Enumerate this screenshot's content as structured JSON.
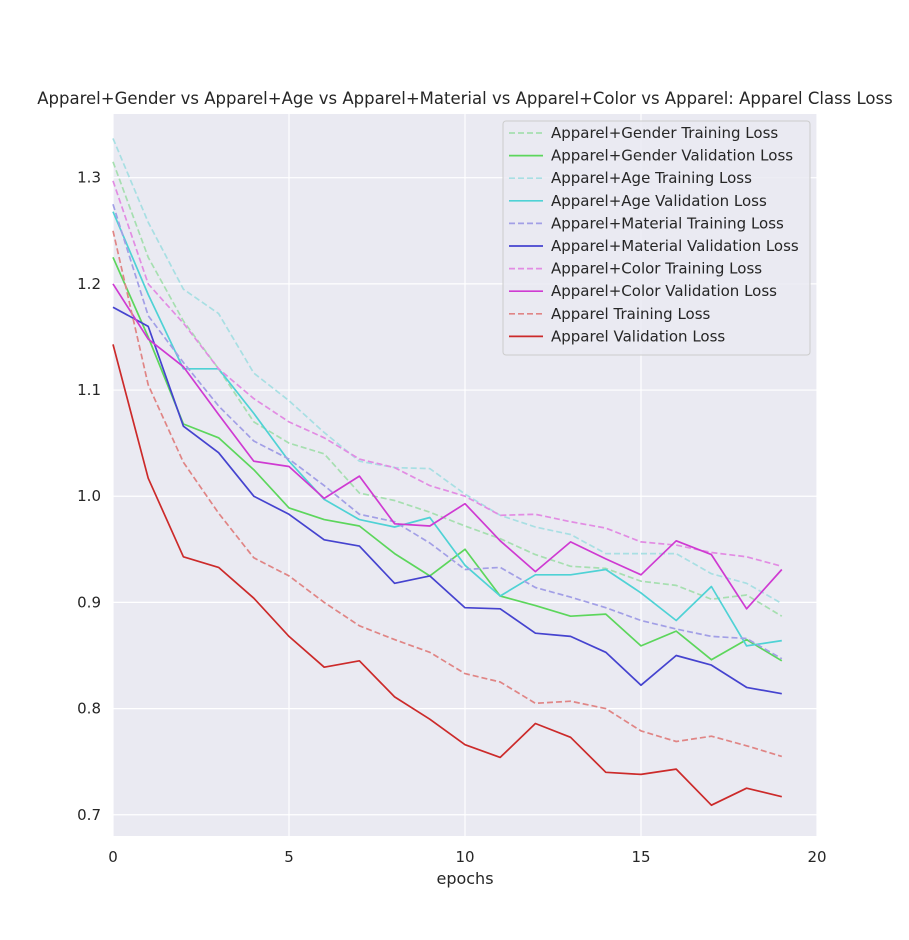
{
  "chart_data": {
    "type": "line",
    "title": "Apparel+Gender vs Apparel+Age vs Apparel+Material vs Apparel+Color vs Apparel: Apparel Class Loss",
    "xlabel": "epochs",
    "ylabel": "",
    "xlim": [
      0,
      20
    ],
    "ylim": [
      0.68,
      1.36
    ],
    "xticks": [
      0,
      5,
      10,
      15,
      20
    ],
    "yticks": [
      0.7,
      0.8,
      0.9,
      1.0,
      1.1,
      1.2,
      1.3
    ],
    "x_tick_labels": [
      "0",
      "5",
      "10",
      "15",
      "20"
    ],
    "y_tick_labels": [
      "0.7",
      "0.8",
      "0.9",
      "1.0",
      "1.1",
      "1.2",
      "1.3"
    ],
    "grid": true,
    "legend_position": "top-right",
    "x": [
      0,
      1,
      2,
      3,
      4,
      5,
      6,
      7,
      8,
      9,
      10,
      11,
      12,
      13,
      14,
      15,
      16,
      17,
      18,
      19
    ],
    "series": [
      {
        "name": "Apparel+Gender Training Loss",
        "color": "#a6dfb0",
        "style": "dashed",
        "values": [
          1.315,
          1.225,
          1.165,
          1.12,
          1.07,
          1.05,
          1.04,
          1.003,
          0.996,
          0.985,
          0.972,
          0.96,
          0.945,
          0.934,
          0.932,
          0.92,
          0.916,
          0.903,
          0.907,
          0.887
        ]
      },
      {
        "name": "Apparel+Gender Validation Loss",
        "color": "#5cd65c",
        "style": "solid",
        "values": [
          1.225,
          1.15,
          1.068,
          1.055,
          1.025,
          0.989,
          0.978,
          0.972,
          0.946,
          0.925,
          0.95,
          0.906,
          0.897,
          0.887,
          0.889,
          0.859,
          0.873,
          0.846,
          0.865,
          0.845
        ]
      },
      {
        "name": "Apparel+Age Training Loss",
        "color": "#a8dfe3",
        "style": "dashed",
        "values": [
          1.337,
          1.258,
          1.195,
          1.172,
          1.116,
          1.09,
          1.06,
          1.033,
          1.027,
          1.026,
          1.002,
          0.982,
          0.971,
          0.964,
          0.946,
          0.946,
          0.946,
          0.927,
          0.918,
          0.899
        ]
      },
      {
        "name": "Apparel+Age Validation Loss",
        "color": "#4fd2d5",
        "style": "solid",
        "values": [
          1.268,
          1.19,
          1.12,
          1.12,
          1.078,
          1.033,
          0.997,
          0.978,
          0.971,
          0.98,
          0.935,
          0.906,
          0.926,
          0.926,
          0.931,
          0.909,
          0.883,
          0.915,
          0.859,
          0.864
        ]
      },
      {
        "name": "Apparel+Material Training Loss",
        "color": "#a29fe6",
        "style": "dashed",
        "values": [
          1.275,
          1.17,
          1.126,
          1.085,
          1.052,
          1.035,
          1.01,
          0.983,
          0.976,
          0.956,
          0.931,
          0.933,
          0.914,
          0.905,
          0.895,
          0.883,
          0.875,
          0.868,
          0.866,
          0.847
        ]
      },
      {
        "name": "Apparel+Material Validation Loss",
        "color": "#4543cf",
        "style": "solid",
        "values": [
          1.178,
          1.16,
          1.066,
          1.041,
          1.0,
          0.983,
          0.959,
          0.953,
          0.918,
          0.925,
          0.895,
          0.894,
          0.871,
          0.868,
          0.853,
          0.822,
          0.85,
          0.841,
          0.82,
          0.814
        ]
      },
      {
        "name": "Apparel+Color Training Loss",
        "color": "#e28ce3",
        "style": "dashed",
        "values": [
          1.297,
          1.2,
          1.163,
          1.12,
          1.092,
          1.07,
          1.055,
          1.035,
          1.027,
          1.01,
          1.0,
          0.982,
          0.983,
          0.976,
          0.97,
          0.957,
          0.954,
          0.947,
          0.943,
          0.934
        ]
      },
      {
        "name": "Apparel+Color Validation Loss",
        "color": "#cf3ad2",
        "style": "solid",
        "values": [
          1.2,
          1.148,
          1.122,
          1.077,
          1.033,
          1.028,
          0.998,
          1.019,
          0.974,
          0.972,
          0.993,
          0.958,
          0.929,
          0.957,
          0.941,
          0.926,
          0.958,
          0.945,
          0.894,
          0.931
        ]
      },
      {
        "name": "Apparel Training Loss",
        "color": "#e08585",
        "style": "dashed",
        "values": [
          1.25,
          1.105,
          1.032,
          0.984,
          0.942,
          0.925,
          0.9,
          0.878,
          0.865,
          0.853,
          0.833,
          0.825,
          0.805,
          0.807,
          0.8,
          0.779,
          0.769,
          0.774,
          0.765,
          0.755
        ]
      },
      {
        "name": "Apparel Validation Loss",
        "color": "#cc2a2a",
        "style": "solid",
        "values": [
          1.143,
          1.017,
          0.943,
          0.933,
          0.904,
          0.868,
          0.839,
          0.845,
          0.811,
          0.79,
          0.766,
          0.754,
          0.786,
          0.773,
          0.74,
          0.738,
          0.743,
          0.709,
          0.725,
          0.717
        ]
      }
    ]
  }
}
